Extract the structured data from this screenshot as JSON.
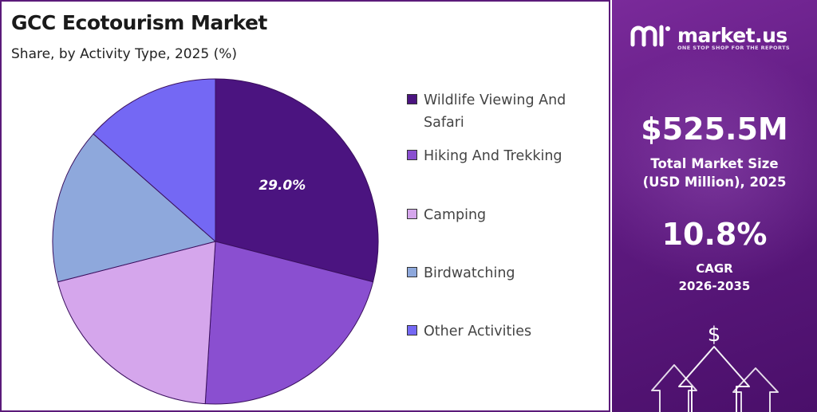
{
  "header": {
    "title": "GCC Ecotourism Market",
    "subtitle": "Share, by Activity Type, 2025 (%)"
  },
  "chart_data": {
    "type": "pie",
    "categories": [
      "Wildlife Viewing And Safari",
      "Hiking And Trekking",
      "Camping",
      "Birdwatching",
      "Other Activities"
    ],
    "values": [
      29.0,
      22.0,
      20.0,
      15.5,
      13.5
    ],
    "colors": [
      "#4b1480",
      "#8a4fd0",
      "#d5a6ec",
      "#8ea8dc",
      "#7468f4"
    ],
    "data_labels": [
      "29.0%",
      "",
      "",
      "",
      ""
    ],
    "start_angle_deg": 0,
    "direction": "clockwise"
  },
  "sidebar": {
    "brand_name": "market.us",
    "brand_tagline": "ONE STOP SHOP FOR THE REPORTS",
    "market_size_value": "$525.5M",
    "market_size_label_line1": "Total Market Size",
    "market_size_label_line2": "(USD Million), 2025",
    "cagr_value": "10.8%",
    "cagr_label": "CAGR",
    "cagr_period": "2026-2035",
    "dollar_symbol": "$",
    "icons": [
      "market-us-logo-icon",
      "growth-arrows-icon",
      "dollar-icon"
    ]
  }
}
